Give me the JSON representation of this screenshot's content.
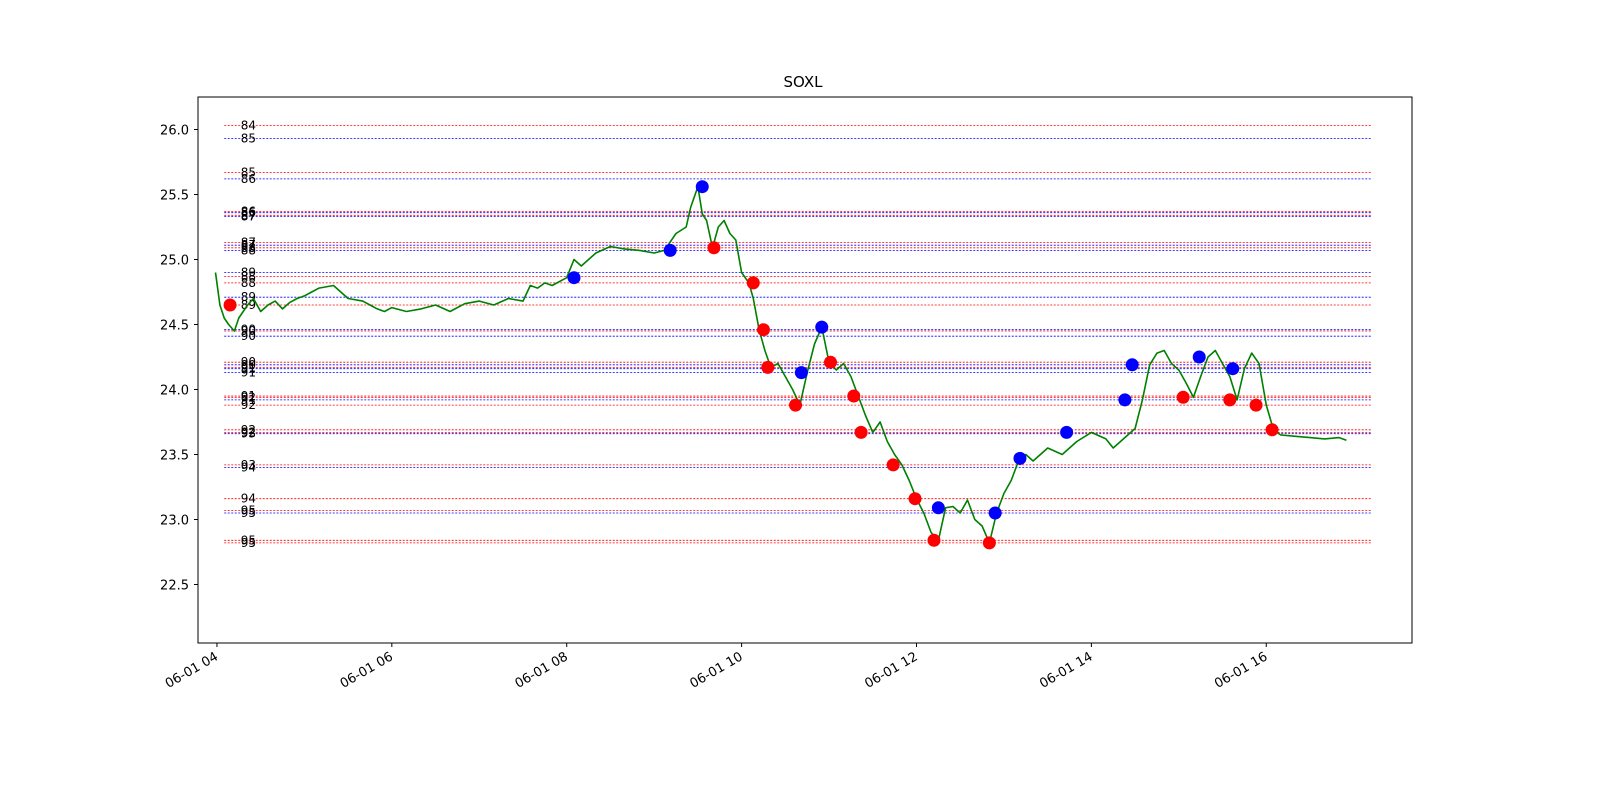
{
  "chart_data": {
    "type": "line",
    "title": "SOXL",
    "xlabel": "",
    "ylabel": "",
    "ylim": [
      22.05,
      26.25
    ],
    "xlim": [
      "06-01 03:47",
      "06-01 17:40"
    ],
    "grid": false,
    "y_ticks": [
      22.5,
      23.0,
      23.5,
      24.0,
      24.5,
      25.0,
      25.5,
      26.0
    ],
    "x_ticks": [
      {
        "t": "06-01 04:00",
        "label": "06-01 04"
      },
      {
        "t": "06-01 06:00",
        "label": "06-01 06"
      },
      {
        "t": "06-01 08:00",
        "label": "06-01 08"
      },
      {
        "t": "06-01 10:00",
        "label": "06-01 10"
      },
      {
        "t": "06-01 12:00",
        "label": "06-01 12"
      },
      {
        "t": "06-01 14:00",
        "label": "06-01 14"
      },
      {
        "t": "06-01 16:00",
        "label": "06-01 16"
      }
    ],
    "colors": {
      "price_line": "#008000",
      "buy_marker": "#0000ff",
      "sell_marker": "#ff0000",
      "red_level": "#ff0000",
      "blue_level": "#0000ff",
      "frame": "#000000"
    },
    "series": [
      {
        "line_color": "#008000",
        "x": [
          "06-01 03:59",
          "06-01 04:02",
          "06-01 04:05",
          "06-01 04:08",
          "06-01 04:12",
          "06-01 04:15",
          "06-01 04:18",
          "06-01 04:21",
          "06-01 04:25",
          "06-01 04:30",
          "06-01 04:35",
          "06-01 04:40",
          "06-01 04:45",
          "06-01 04:50",
          "06-01 04:55",
          "06-01 05:00",
          "06-01 05:05",
          "06-01 05:10",
          "06-01 05:20",
          "06-01 05:30",
          "06-01 05:40",
          "06-01 05:45",
          "06-01 05:50",
          "06-01 05:55",
          "06-01 06:00",
          "06-01 06:10",
          "06-01 06:20",
          "06-01 06:30",
          "06-01 06:40",
          "06-01 06:50",
          "06-01 07:00",
          "06-01 07:10",
          "06-01 07:20",
          "06-01 07:30",
          "06-01 07:35",
          "06-01 07:40",
          "06-01 07:45",
          "06-01 07:50",
          "06-01 08:00",
          "06-01 08:05",
          "06-01 08:10",
          "06-01 08:20",
          "06-01 08:30",
          "06-01 08:40",
          "06-01 08:50",
          "06-01 09:00",
          "06-01 09:07",
          "06-01 09:15",
          "06-01 09:22",
          "06-01 09:25",
          "06-01 09:30",
          "06-01 09:33",
          "06-01 09:36",
          "06-01 09:40",
          "06-01 09:44",
          "06-01 09:48",
          "06-01 09:52",
          "06-01 09:56",
          "06-01 10:00",
          "06-01 10:05",
          "06-01 10:08",
          "06-01 10:12",
          "06-01 10:16",
          "06-01 10:20",
          "06-01 10:25",
          "06-01 10:30",
          "06-01 10:35",
          "06-01 10:40",
          "06-01 10:45",
          "06-01 10:50",
          "06-01 10:55",
          "06-01 11:00",
          "06-01 11:05",
          "06-01 11:10",
          "06-01 11:15",
          "06-01 11:20",
          "06-01 11:25",
          "06-01 11:30",
          "06-01 11:35",
          "06-01 11:40",
          "06-01 11:45",
          "06-01 11:50",
          "06-01 11:55",
          "06-01 12:00",
          "06-01 12:05",
          "06-01 12:10",
          "06-01 12:15",
          "06-01 12:20",
          "06-01 12:25",
          "06-01 12:30",
          "06-01 12:35",
          "06-01 12:40",
          "06-01 12:45",
          "06-01 12:50",
          "06-01 12:55",
          "06-01 13:00",
          "06-01 13:05",
          "06-01 13:10",
          "06-01 13:15",
          "06-01 13:20",
          "06-01 13:30",
          "06-01 13:40",
          "06-01 13:50",
          "06-01 14:00",
          "06-01 14:10",
          "06-01 14:15",
          "06-01 14:20",
          "06-01 14:25",
          "06-01 14:30",
          "06-01 14:35",
          "06-01 14:40",
          "06-01 14:45",
          "06-01 14:50",
          "06-01 14:55",
          "06-01 15:00",
          "06-01 15:05",
          "06-01 15:10",
          "06-01 15:15",
          "06-01 15:20",
          "06-01 15:25",
          "06-01 15:30",
          "06-01 15:35",
          "06-01 15:40",
          "06-01 15:45",
          "06-01 15:50",
          "06-01 15:55",
          "06-01 16:00",
          "06-01 16:05",
          "06-01 16:10",
          "06-01 16:20",
          "06-01 16:30",
          "06-01 16:40",
          "06-01 16:50",
          "06-01 16:55"
        ],
        "values": [
          24.9,
          24.65,
          24.55,
          24.5,
          24.45,
          24.55,
          24.6,
          24.65,
          24.7,
          24.6,
          24.65,
          24.68,
          24.62,
          24.67,
          24.7,
          24.72,
          24.75,
          24.78,
          24.8,
          24.7,
          24.68,
          24.65,
          24.62,
          24.6,
          24.63,
          24.6,
          24.62,
          24.65,
          24.6,
          24.66,
          24.68,
          24.65,
          24.7,
          24.68,
          24.8,
          24.78,
          24.82,
          24.8,
          24.86,
          25.0,
          24.95,
          25.05,
          25.1,
          25.08,
          25.07,
          25.05,
          25.07,
          25.2,
          25.25,
          25.4,
          25.56,
          25.35,
          25.3,
          25.09,
          25.25,
          25.3,
          25.2,
          25.15,
          24.9,
          24.82,
          24.7,
          24.46,
          24.3,
          24.17,
          24.2,
          24.1,
          24.0,
          23.88,
          24.13,
          24.35,
          24.48,
          24.21,
          24.15,
          24.2,
          24.1,
          23.95,
          23.8,
          23.67,
          23.75,
          23.6,
          23.5,
          23.42,
          23.3,
          23.16,
          23.05,
          22.9,
          22.84,
          23.09,
          23.1,
          23.05,
          23.15,
          23.0,
          22.95,
          22.82,
          23.05,
          23.2,
          23.3,
          23.45,
          23.5,
          23.45,
          23.55,
          23.5,
          23.6,
          23.67,
          23.62,
          23.55,
          23.6,
          23.65,
          23.7,
          23.92,
          24.19,
          24.28,
          24.3,
          24.2,
          24.15,
          24.05,
          23.94,
          24.1,
          24.25,
          24.3,
          24.2,
          24.1,
          23.92,
          24.16,
          24.28,
          24.2,
          23.88,
          23.69,
          23.65,
          23.64,
          23.63,
          23.62,
          23.63,
          23.61
        ]
      }
    ],
    "markers": {
      "buy": [
        {
          "x": "06-01 08:05",
          "y": 24.86
        },
        {
          "x": "06-01 09:11",
          "y": 25.07
        },
        {
          "x": "06-01 09:33",
          "y": 25.56
        },
        {
          "x": "06-01 10:41",
          "y": 24.13
        },
        {
          "x": "06-01 10:55",
          "y": 24.48
        },
        {
          "x": "06-01 12:15",
          "y": 23.09
        },
        {
          "x": "06-01 12:54",
          "y": 23.05
        },
        {
          "x": "06-01 13:11",
          "y": 23.47
        },
        {
          "x": "06-01 13:43",
          "y": 23.67
        },
        {
          "x": "06-01 14:23",
          "y": 23.92
        },
        {
          "x": "06-01 14:28",
          "y": 24.19
        },
        {
          "x": "06-01 15:14",
          "y": 24.25
        },
        {
          "x": "06-01 15:37",
          "y": 24.16
        }
      ],
      "sell": [
        {
          "x": "06-01 04:09",
          "y": 24.65
        },
        {
          "x": "06-01 09:41",
          "y": 25.09
        },
        {
          "x": "06-01 10:08",
          "y": 24.82
        },
        {
          "x": "06-01 10:15",
          "y": 24.46
        },
        {
          "x": "06-01 10:18",
          "y": 24.17
        },
        {
          "x": "06-01 10:37",
          "y": 23.88
        },
        {
          "x": "06-01 11:01",
          "y": 24.21
        },
        {
          "x": "06-01 11:17",
          "y": 23.95
        },
        {
          "x": "06-01 11:22",
          "y": 23.67
        },
        {
          "x": "06-01 11:44",
          "y": 23.42
        },
        {
          "x": "06-01 11:59",
          "y": 23.16
        },
        {
          "x": "06-01 12:12",
          "y": 22.84
        },
        {
          "x": "06-01 12:50",
          "y": 22.82
        },
        {
          "x": "06-01 15:03",
          "y": 23.94
        },
        {
          "x": "06-01 15:35",
          "y": 23.92
        },
        {
          "x": "06-01 15:53",
          "y": 23.88
        },
        {
          "x": "06-01 16:04",
          "y": 23.69
        }
      ]
    },
    "levels": [
      {
        "label": "84",
        "y": 26.03,
        "color": "red"
      },
      {
        "label": "85",
        "y": 25.93,
        "color": "blue"
      },
      {
        "label": "85",
        "y": 25.67,
        "color": "red"
      },
      {
        "label": "86",
        "y": 25.62,
        "color": "blue"
      },
      {
        "label": "86",
        "y": 25.37,
        "color": "red"
      },
      {
        "label": "86",
        "y": 25.36,
        "color": "blue"
      },
      {
        "label": "87",
        "y": 25.34,
        "color": "red"
      },
      {
        "label": "87",
        "y": 25.33,
        "color": "blue"
      },
      {
        "label": "87",
        "y": 25.13,
        "color": "red"
      },
      {
        "label": "87",
        "y": 25.11,
        "color": "blue"
      },
      {
        "label": "88",
        "y": 25.09,
        "color": "red"
      },
      {
        "label": "88",
        "y": 25.07,
        "color": "blue"
      },
      {
        "label": "89",
        "y": 24.9,
        "color": "blue"
      },
      {
        "label": "88",
        "y": 24.87,
        "color": "red"
      },
      {
        "label": "88",
        "y": 24.82,
        "color": "red"
      },
      {
        "label": "89",
        "y": 24.71,
        "color": "blue"
      },
      {
        "label": "89",
        "y": 24.65,
        "color": "red"
      },
      {
        "label": "90",
        "y": 24.46,
        "color": "blue"
      },
      {
        "label": "90",
        "y": 24.45,
        "color": "red"
      },
      {
        "label": "90",
        "y": 24.41,
        "color": "blue"
      },
      {
        "label": "90",
        "y": 24.21,
        "color": "red"
      },
      {
        "label": "90",
        "y": 24.19,
        "color": "blue"
      },
      {
        "label": "91",
        "y": 24.17,
        "color": "red"
      },
      {
        "label": "91",
        "y": 24.16,
        "color": "blue"
      },
      {
        "label": "91",
        "y": 24.13,
        "color": "blue"
      },
      {
        "label": "91",
        "y": 23.95,
        "color": "red"
      },
      {
        "label": "92",
        "y": 23.94,
        "color": "red"
      },
      {
        "label": "91",
        "y": 23.92,
        "color": "blue"
      },
      {
        "label": "92",
        "y": 23.88,
        "color": "red"
      },
      {
        "label": "92",
        "y": 23.69,
        "color": "red"
      },
      {
        "label": "92",
        "y": 23.67,
        "color": "red"
      },
      {
        "label": "93",
        "y": 23.66,
        "color": "blue"
      },
      {
        "label": "93",
        "y": 23.42,
        "color": "red"
      },
      {
        "label": "94",
        "y": 23.4,
        "color": "blue"
      },
      {
        "label": "94",
        "y": 23.16,
        "color": "red"
      },
      {
        "label": "95",
        "y": 23.07,
        "color": "red"
      },
      {
        "label": "95",
        "y": 23.05,
        "color": "blue"
      },
      {
        "label": "95",
        "y": 22.84,
        "color": "red"
      },
      {
        "label": "95",
        "y": 22.82,
        "color": "red"
      }
    ]
  }
}
